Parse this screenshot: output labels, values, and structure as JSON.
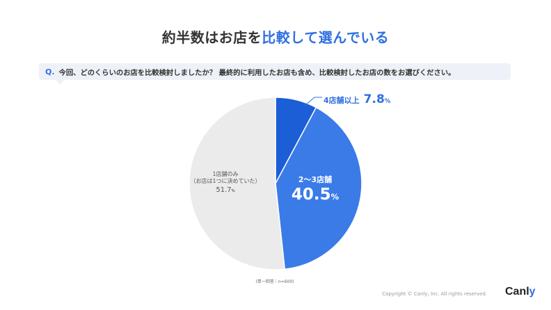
{
  "title": {
    "prefix": "約半数はお店を",
    "highlight": "比較して選んでいる"
  },
  "question": {
    "label": "Q.",
    "text": "今回、どのくらいのお店を比較検討しましたか？ 最終的に利用したお店も含め、比較検討したお店の数をお選びください。"
  },
  "chart_data": {
    "type": "pie",
    "title": "",
    "slices": [
      {
        "label": "4店舗以上",
        "value": 7.8,
        "color": "#1b5ed6"
      },
      {
        "label": "2〜3店舗",
        "value": 40.5,
        "color": "#3b7be8"
      },
      {
        "label": "1店舗のみ",
        "sublabel": "（お店は1つに決めていた）",
        "value": 51.7,
        "color": "#ebebeb"
      }
    ],
    "unit": "%",
    "note": "(単一回答｜n=600)"
  },
  "labels": {
    "top": {
      "name": "4店舗以上",
      "value": "7.8",
      "unit": "%"
    },
    "mid": {
      "name": "2〜3店舗",
      "value": "40.5",
      "unit": "%"
    },
    "grey": {
      "name": "1店舗のみ",
      "sub": "（お店は1つに決めていた）",
      "value": "51.7",
      "unit": "%"
    }
  },
  "footer": {
    "copyright": "Copyright © Canly, Inc. All rights reserved.",
    "logo_main": "Canl",
    "logo_accent": "y"
  }
}
